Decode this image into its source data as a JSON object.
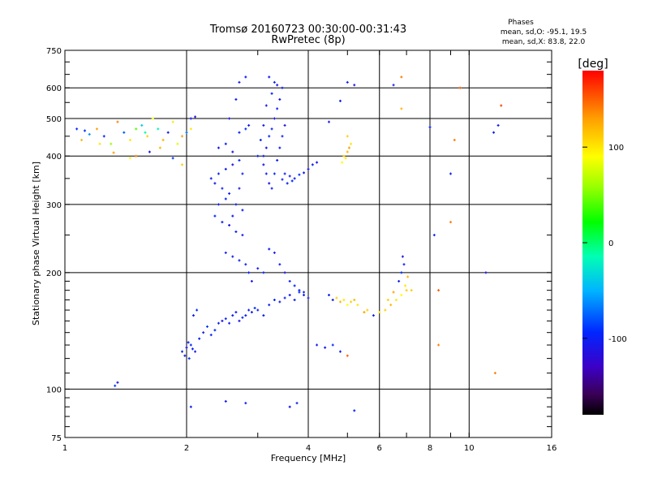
{
  "chart_data": {
    "type": "scatter",
    "title": "Tromsø 20160723 00:30:00-00:31:43",
    "subtitle": "RwPretec (8p)",
    "xlabel": "Frequency [MHz]",
    "ylabel": "Stationary phase Virtual Height [km]",
    "x_scale": "log",
    "y_scale": "log",
    "xlim": [
      1,
      16
    ],
    "ylim": [
      75,
      750
    ],
    "x_ticks": [
      "1",
      "2",
      "4",
      "6",
      "8",
      "10",
      "16"
    ],
    "y_ticks": [
      "75",
      "100",
      "200",
      "300",
      "400",
      "500",
      "600",
      "750"
    ],
    "grid": true,
    "phase_info": {
      "heading": "Phases",
      "line1": "mean, sd,O: -95.1, 19.5",
      "line2": "mean, sd,X:  83.8, 22.0"
    },
    "colorbar": {
      "label": "[deg]",
      "range": [
        -180,
        180
      ],
      "ticks": [
        "100",
        "0",
        "-100"
      ],
      "tick_values": [
        100,
        0,
        -100
      ],
      "colormap": "rainbow"
    },
    "points": [
      [
        1.07,
        470,
        -95
      ],
      [
        1.12,
        465,
        -90
      ],
      [
        1.1,
        440,
        120
      ],
      [
        1.15,
        455,
        -60
      ],
      [
        1.2,
        470,
        130
      ],
      [
        1.25,
        450,
        -100
      ],
      [
        1.3,
        430,
        60
      ],
      [
        1.35,
        490,
        140
      ],
      [
        1.4,
        460,
        -80
      ],
      [
        1.45,
        440,
        100
      ],
      [
        1.5,
        470,
        40
      ],
      [
        1.55,
        480,
        -40
      ],
      [
        1.6,
        450,
        110
      ],
      [
        1.65,
        500,
        90
      ],
      [
        1.7,
        470,
        -20
      ],
      [
        1.75,
        440,
        120
      ],
      [
        1.8,
        460,
        -110
      ],
      [
        1.85,
        490,
        100
      ],
      [
        1.9,
        430,
        80
      ],
      [
        1.95,
        450,
        130
      ],
      [
        2.0,
        460,
        -70
      ],
      [
        2.05,
        470,
        100
      ],
      [
        1.62,
        410,
        -110
      ],
      [
        1.72,
        420,
        120
      ],
      [
        1.5,
        400,
        140
      ],
      [
        1.85,
        395,
        -90
      ],
      [
        1.95,
        380,
        110
      ],
      [
        1.45,
        395,
        90
      ],
      [
        1.32,
        408,
        130
      ],
      [
        1.22,
        430,
        100
      ],
      [
        1.58,
        460,
        -10
      ],
      [
        2.05,
        500,
        -100
      ],
      [
        2.1,
        505,
        -110
      ],
      [
        1.95,
        125,
        -100
      ],
      [
        2.0,
        128,
        -110
      ],
      [
        2.05,
        130,
        -95
      ],
      [
        2.1,
        125,
        -105
      ],
      [
        2.15,
        135,
        -100
      ],
      [
        2.2,
        140,
        -110
      ],
      [
        2.25,
        145,
        -90
      ],
      [
        2.3,
        138,
        -100
      ],
      [
        2.35,
        142,
        -95
      ],
      [
        2.4,
        148,
        -100
      ],
      [
        2.45,
        150,
        -110
      ],
      [
        2.5,
        152,
        -100
      ],
      [
        2.55,
        148,
        -95
      ],
      [
        2.6,
        155,
        -105
      ],
      [
        2.65,
        158,
        -100
      ],
      [
        2.7,
        150,
        -110
      ],
      [
        2.75,
        153,
        -95
      ],
      [
        2.8,
        155,
        -100
      ],
      [
        2.85,
        160,
        -105
      ],
      [
        2.9,
        158,
        -100
      ],
      [
        2.95,
        162,
        -90
      ],
      [
        3.0,
        160,
        -100
      ],
      [
        3.1,
        155,
        -105
      ],
      [
        3.2,
        165,
        -100
      ],
      [
        3.3,
        170,
        -95
      ],
      [
        3.4,
        168,
        -110
      ],
      [
        3.5,
        172,
        -100
      ],
      [
        3.6,
        175,
        -105
      ],
      [
        3.7,
        170,
        -100
      ],
      [
        3.8,
        178,
        -95
      ],
      [
        3.9,
        175,
        -100
      ],
      [
        4.0,
        172,
        -105
      ],
      [
        2.08,
        155,
        -100
      ],
      [
        2.12,
        160,
        -95
      ],
      [
        2.02,
        132,
        -100
      ],
      [
        1.98,
        122,
        -110
      ],
      [
        2.03,
        120,
        -90
      ],
      [
        2.07,
        127,
        -100
      ],
      [
        2.3,
        350,
        -100
      ],
      [
        2.35,
        340,
        -110
      ],
      [
        2.4,
        360,
        -95
      ],
      [
        2.45,
        330,
        -100
      ],
      [
        2.5,
        370,
        -105
      ],
      [
        2.55,
        320,
        -100
      ],
      [
        2.6,
        380,
        -110
      ],
      [
        2.65,
        300,
        -100
      ],
      [
        2.7,
        390,
        -95
      ],
      [
        2.75,
        290,
        -100
      ],
      [
        2.4,
        420,
        -105
      ],
      [
        2.5,
        430,
        -100
      ],
      [
        2.6,
        410,
        -110
      ],
      [
        2.7,
        460,
        -100
      ],
      [
        2.8,
        470,
        -95
      ],
      [
        2.85,
        480,
        -100
      ],
      [
        2.55,
        500,
        -110
      ],
      [
        2.65,
        560,
        -100
      ],
      [
        2.7,
        620,
        -105
      ],
      [
        2.8,
        640,
        -100
      ],
      [
        2.35,
        280,
        -95
      ],
      [
        2.45,
        270,
        -100
      ],
      [
        2.55,
        265,
        -110
      ],
      [
        2.65,
        255,
        -100
      ],
      [
        2.75,
        250,
        -105
      ],
      [
        2.4,
        300,
        -100
      ],
      [
        2.5,
        310,
        -95
      ],
      [
        2.6,
        280,
        -100
      ],
      [
        2.7,
        330,
        -110
      ],
      [
        2.75,
        360,
        -100
      ],
      [
        2.5,
        225,
        -100
      ],
      [
        2.6,
        220,
        -105
      ],
      [
        2.7,
        215,
        -100
      ],
      [
        2.8,
        210,
        -95
      ],
      [
        2.85,
        200,
        -100
      ],
      [
        2.9,
        190,
        -110
      ],
      [
        3.1,
        400,
        -100
      ],
      [
        3.15,
        420,
        -110
      ],
      [
        3.2,
        450,
        -95
      ],
      [
        3.25,
        470,
        -100
      ],
      [
        3.3,
        500,
        -105
      ],
      [
        3.35,
        530,
        -100
      ],
      [
        3.4,
        560,
        -110
      ],
      [
        3.45,
        600,
        -100
      ],
      [
        3.3,
        620,
        -95
      ],
      [
        3.2,
        640,
        -100
      ],
      [
        3.1,
        380,
        -105
      ],
      [
        3.15,
        360,
        -100
      ],
      [
        3.2,
        340,
        -110
      ],
      [
        3.25,
        330,
        -100
      ],
      [
        3.3,
        360,
        -95
      ],
      [
        3.35,
        390,
        -100
      ],
      [
        3.4,
        420,
        -105
      ],
      [
        3.45,
        450,
        -100
      ],
      [
        3.5,
        480,
        -110
      ],
      [
        3.1,
        480,
        -100
      ],
      [
        3.05,
        440,
        -95
      ],
      [
        3.0,
        400,
        -100
      ],
      [
        3.15,
        540,
        -105
      ],
      [
        3.25,
        580,
        -100
      ],
      [
        3.35,
        610,
        -110
      ],
      [
        3.5,
        360,
        -100
      ],
      [
        3.6,
        355,
        -105
      ],
      [
        3.7,
        350,
        -100
      ],
      [
        3.8,
        358,
        -95
      ],
      [
        3.9,
        362,
        -100
      ],
      [
        4.0,
        370,
        -110
      ],
      [
        4.1,
        380,
        -100
      ],
      [
        4.2,
        385,
        -105
      ],
      [
        3.55,
        340,
        -100
      ],
      [
        3.65,
        345,
        -95
      ],
      [
        3.45,
        348,
        -100
      ],
      [
        3.2,
        230,
        -100
      ],
      [
        3.3,
        225,
        -105
      ],
      [
        3.4,
        210,
        -100
      ],
      [
        3.5,
        200,
        -110
      ],
      [
        3.6,
        190,
        -100
      ],
      [
        3.7,
        185,
        -95
      ],
      [
        3.8,
        180,
        -100
      ],
      [
        3.9,
        178,
        -105
      ],
      [
        3.0,
        205,
        -100
      ],
      [
        3.1,
        200,
        -95
      ],
      [
        4.5,
        175,
        -100
      ],
      [
        4.6,
        170,
        -105
      ],
      [
        4.7,
        172,
        110
      ],
      [
        4.8,
        168,
        120
      ],
      [
        4.9,
        170,
        100
      ],
      [
        5.0,
        165,
        90
      ],
      [
        5.1,
        168,
        110
      ],
      [
        5.2,
        170,
        120
      ],
      [
        5.3,
        165,
        100
      ],
      [
        5.5,
        158,
        130
      ],
      [
        5.6,
        160,
        110
      ],
      [
        5.8,
        155,
        -100
      ],
      [
        6.0,
        158,
        100
      ],
      [
        6.2,
        160,
        110
      ],
      [
        6.4,
        165,
        120
      ],
      [
        6.6,
        170,
        100
      ],
      [
        6.8,
        175,
        90
      ],
      [
        7.0,
        180,
        110
      ],
      [
        6.7,
        190,
        -100
      ],
      [
        6.8,
        200,
        -95
      ],
      [
        6.9,
        210,
        -100
      ],
      [
        6.85,
        220,
        -110
      ],
      [
        6.95,
        185,
        100
      ],
      [
        7.05,
        195,
        120
      ],
      [
        6.5,
        178,
        130
      ],
      [
        6.3,
        170,
        110
      ],
      [
        4.9,
        400,
        110
      ],
      [
        5.0,
        410,
        120
      ],
      [
        4.95,
        395,
        100
      ],
      [
        5.05,
        420,
        130
      ],
      [
        4.85,
        385,
        90
      ],
      [
        5.0,
        450,
        110
      ],
      [
        5.1,
        430,
        100
      ],
      [
        1.35,
        104,
        -110
      ],
      [
        1.33,
        102,
        -90
      ],
      [
        2.05,
        90,
        -100
      ],
      [
        2.5,
        93,
        -105
      ],
      [
        2.8,
        92,
        -100
      ],
      [
        3.6,
        90,
        -110
      ],
      [
        3.75,
        92,
        -100
      ],
      [
        5.2,
        88,
        -95
      ],
      [
        5.0,
        620,
        -100
      ],
      [
        4.5,
        490,
        -105
      ],
      [
        4.8,
        555,
        -100
      ],
      [
        5.2,
        610,
        -110
      ],
      [
        6.5,
        610,
        -100
      ],
      [
        6.8,
        640,
        140
      ],
      [
        6.8,
        530,
        120
      ],
      [
        7.2,
        180,
        110
      ],
      [
        8.0,
        475,
        -100
      ],
      [
        9.2,
        440,
        140
      ],
      [
        9.0,
        360,
        -100
      ],
      [
        9.5,
        600,
        150
      ],
      [
        12.0,
        540,
        160
      ],
      [
        11.5,
        460,
        -100
      ],
      [
        11.8,
        480,
        -105
      ],
      [
        11.0,
        200,
        -110
      ],
      [
        11.6,
        110,
        140
      ],
      [
        9.0,
        270,
        140
      ],
      [
        8.4,
        180,
        150
      ],
      [
        8.4,
        130,
        140
      ],
      [
        8.2,
        250,
        -100
      ],
      [
        4.2,
        130,
        -100
      ],
      [
        4.4,
        128,
        -105
      ],
      [
        4.6,
        130,
        -95
      ],
      [
        4.8,
        125,
        -100
      ],
      [
        5.0,
        122,
        150
      ]
    ]
  }
}
